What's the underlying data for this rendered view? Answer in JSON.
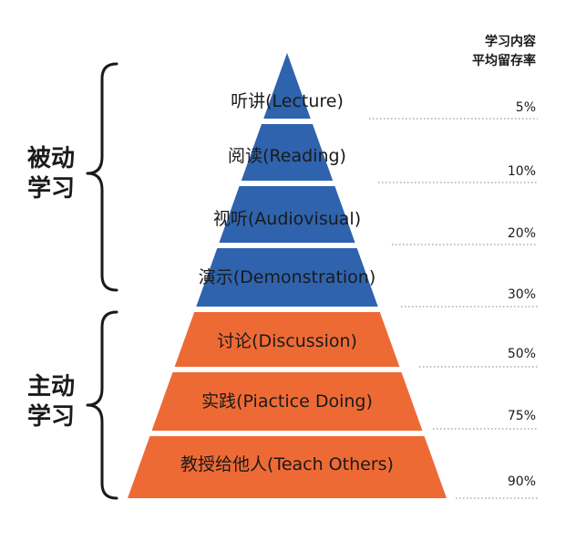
{
  "header": {
    "line1": "学习内容",
    "line2": "平均留存率"
  },
  "groups": [
    {
      "line1": "被动",
      "line2": "学习"
    },
    {
      "line1": "主动",
      "line2": "学习"
    }
  ],
  "levels": [
    {
      "label": "听讲(Lecture)",
      "retention": "5%",
      "color": "#2f63ae"
    },
    {
      "label": "阅读(Reading)",
      "retention": "10%",
      "color": "#2f63ae"
    },
    {
      "label": "视听(Audiovisual)",
      "retention": "20%",
      "color": "#2f63ae"
    },
    {
      "label": "演示(Demonstration)",
      "retention": "30%",
      "color": "#2f63ae"
    },
    {
      "label": "讨论(Discussion)",
      "retention": "50%",
      "color": "#ee6a35"
    },
    {
      "label": "实践(Piactice Doing)",
      "retention": "75%",
      "color": "#ee6a35"
    },
    {
      "label": "教授给他人(Teach Others)",
      "retention": "90%",
      "color": "#ee6a35"
    }
  ]
}
